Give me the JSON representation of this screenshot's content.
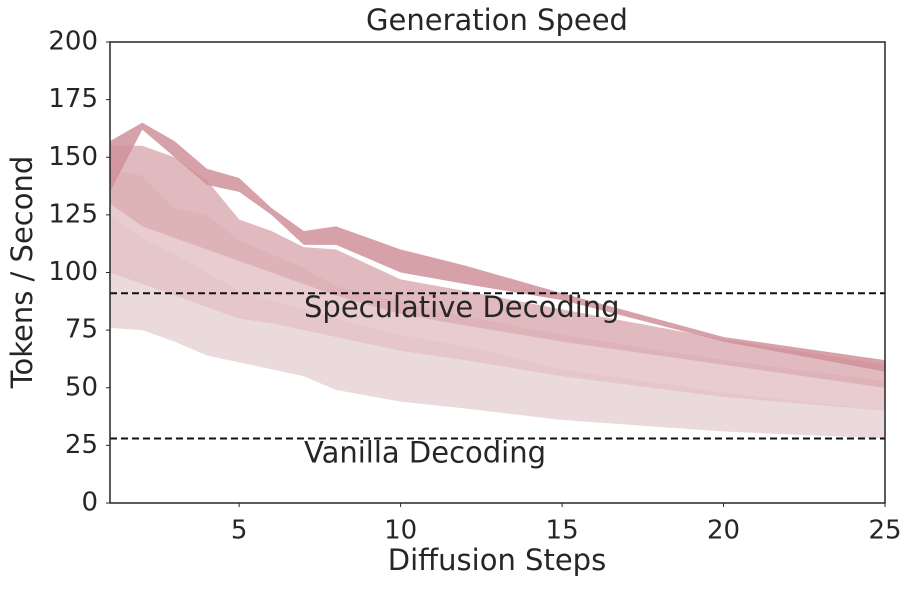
{
  "chart_data": {
    "type": "band",
    "title": "Generation Speed",
    "x_label": "Diffusion Steps",
    "y_label": "Tokens / Second",
    "x": [
      1,
      2,
      3,
      4,
      5,
      6,
      7,
      8,
      10,
      12,
      15,
      20,
      25
    ],
    "xlim": [
      1,
      25
    ],
    "xticks": [
      5,
      10,
      15,
      20,
      25
    ],
    "ylim": [
      0,
      200
    ],
    "yticks": [
      0,
      25,
      50,
      75,
      100,
      125,
      150,
      175,
      200
    ],
    "series": [
      {
        "color": "#e8d3d6",
        "lower": [
          76,
          75,
          70,
          64,
          61,
          58,
          55,
          49,
          44,
          41,
          36,
          31,
          28
        ],
        "upper": [
          125,
          115,
          108,
          100,
          92,
          88,
          84,
          80,
          73,
          68,
          58,
          48,
          40
        ]
      },
      {
        "color": "#e4c3c7",
        "lower": [
          100,
          95,
          90,
          85,
          80,
          78,
          75,
          72,
          66,
          62,
          55,
          46,
          40
        ],
        "upper": [
          145,
          142,
          128,
          125,
          114,
          108,
          102,
          94,
          87,
          81,
          73,
          62,
          53
        ]
      },
      {
        "color": "#dcaeb4",
        "lower": [
          130,
          120,
          115,
          110,
          105,
          100,
          95,
          90,
          82,
          77,
          70,
          60,
          50
        ],
        "upper": [
          155,
          155,
          150,
          140,
          123,
          118,
          111,
          110,
          97,
          92,
          84,
          71,
          60
        ]
      },
      {
        "color": "#cf9199",
        "lower": [
          135,
          162,
          150,
          138,
          135,
          125,
          112,
          112,
          100,
          95,
          88,
          70,
          57
        ],
        "upper": [
          157,
          165,
          157,
          145,
          141,
          128,
          118,
          120,
          110,
          103,
          91,
          72,
          62
        ]
      }
    ],
    "hlines": [
      {
        "value": 91,
        "label": "Speculative Decoding"
      },
      {
        "value": 28,
        "label": "Vanilla Decoding"
      }
    ]
  }
}
